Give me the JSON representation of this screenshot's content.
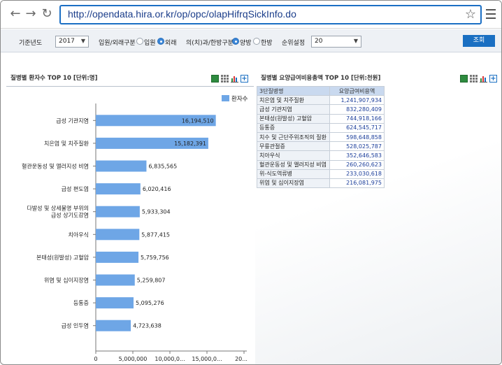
{
  "browser": {
    "url": "http://opendata.hira.or.kr/op/opc/olapHifrqSickInfo.do"
  },
  "filters": {
    "year_label": "기준년도",
    "year_value": "2017",
    "care_type_label": "입원/외래구분",
    "care_type_options": [
      "입원",
      "외래"
    ],
    "care_type_selected": "외래",
    "medicine_label": "의(치)과/한방구분",
    "medicine_options": [
      "양방",
      "한방"
    ],
    "medicine_selected": "양방",
    "rank_label": "순위설정",
    "rank_value": "20",
    "search_label": "조회"
  },
  "left_panel": {
    "title": "질병별 환자수 TOP 10 [단위:명]"
  },
  "right_panel": {
    "title": "질병별 요양급여비용총액 TOP 10 [단위:천원]",
    "columns": [
      "3단질병명",
      "요양급여비용액"
    ],
    "rows": [
      {
        "name": "치은염 및 치주질환",
        "value": "1,241,907,934"
      },
      {
        "name": "급성 기관지염",
        "value": "832,280,409"
      },
      {
        "name": "본태성(원발성) 고혈압",
        "value": "744,918,166"
      },
      {
        "name": "등통증",
        "value": "624,545,717"
      },
      {
        "name": "치수 및 근단주위조직의 질환",
        "value": "598,648,858"
      },
      {
        "name": "무릎관절증",
        "value": "528,025,787"
      },
      {
        "name": "치아우식",
        "value": "352,646,583"
      },
      {
        "name": "혈관운동성 및 앨러지성 비염",
        "value": "260,260,623"
      },
      {
        "name": "위-식도역류병",
        "value": "233,030,618"
      },
      {
        "name": "위염 및 십이지장염",
        "value": "216,081,975"
      }
    ]
  },
  "chart_data": {
    "type": "bar",
    "orientation": "horizontal",
    "categories": [
      "급성 기관지염",
      "치은염 및 치주질환",
      "혈관운동성 및 앨러지성 비염",
      "급성 편도염",
      "다발성 및 상세불명 부위의 급성 상기도감염",
      "치아우식",
      "본태성(원발성) 고혈압",
      "위염 및 십이지장염",
      "등통증",
      "급성 인두염"
    ],
    "series": [
      {
        "name": "환자수",
        "color": "#6ea6e6",
        "values": [
          16194510,
          15182391,
          6835565,
          6020416,
          5933304,
          5877415,
          5759756,
          5259807,
          5095276,
          4723638
        ],
        "labels": [
          "16,194,510",
          "15,182,391",
          "6,835,565",
          "6,020,416",
          "5,933,304",
          "5,877,415",
          "5,759,756",
          "5,259,807",
          "5,095,276",
          "4,723,638"
        ]
      }
    ],
    "xlim": [
      0,
      20000000
    ],
    "xticks": [
      "0",
      "5,000,000",
      "10,000,0...",
      "15,000,0...",
      "20..."
    ],
    "legend": "top-right",
    "grid": false
  }
}
